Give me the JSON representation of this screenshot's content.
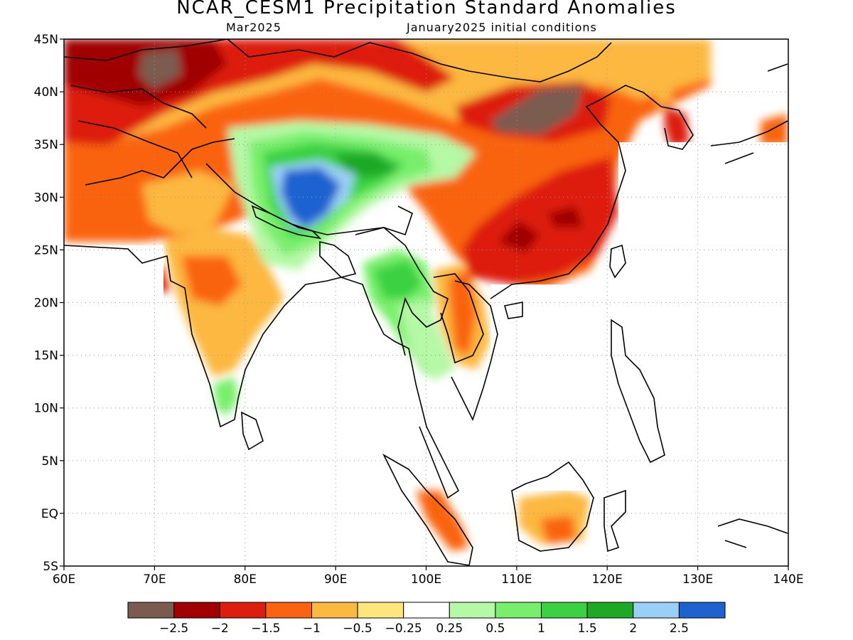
{
  "title": "NCAR_CESM1 Precipitation Standard Anomalies",
  "subtitle_left": "Mar2025",
  "subtitle_right": "January2025 initial conditions",
  "map": {
    "lon_range": [
      60,
      140
    ],
    "lat_range": [
      -5,
      45
    ],
    "lat_ticks": [
      "45N",
      "40N",
      "35N",
      "30N",
      "25N",
      "20N",
      "15N",
      "10N",
      "5N",
      "EQ",
      "5S"
    ],
    "lon_ticks": [
      "60E",
      "70E",
      "80E",
      "90E",
      "100E",
      "110E",
      "120E",
      "130E",
      "140E"
    ],
    "grid": "dotted",
    "coastline_color": "#000000"
  },
  "legend": {
    "colors": [
      "#7b5b4f",
      "#a00000",
      "#dd1d0e",
      "#fa6311",
      "#fcb840",
      "#fee67c",
      "#ffffff",
      "#b5f8a6",
      "#78ef6c",
      "#3bd143",
      "#1ea925",
      "#9ad0f7",
      "#1e62d0"
    ],
    "labels": [
      "-2.5",
      "-2",
      "-1.5",
      "-1",
      "-0.5",
      "-0.25",
      "0.25",
      "0.5",
      "1",
      "1.5",
      "2",
      "2.5"
    ]
  }
}
